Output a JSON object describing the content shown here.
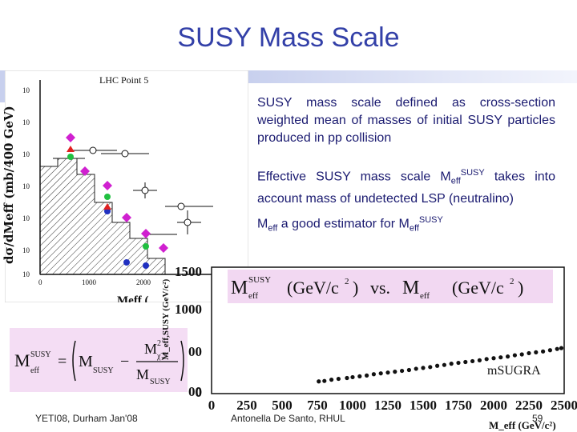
{
  "slide": {
    "title": "SUSY Mass Scale",
    "bullets": [
      {
        "text": "SUSY mass scale defined as cross-section weighted mean of masses of initial SUSY particles produced in pp collision"
      },
      {
        "prefix": "Effective SUSY mass scale  M",
        "sub": "eff",
        "sup": "SUSY",
        "suffix": " takes into account mass of undetected LSP (neutralino)"
      },
      {
        "prefix": "M",
        "sub1": "eff",
        "middle": " a good estimator for  M",
        "sub2": "eff",
        "sup": "SUSY"
      }
    ],
    "footer": {
      "left": "YETI08, Durham Jan'08",
      "center": "Antonella De Santo, RHUL",
      "page": "59"
    }
  },
  "left_plot": {
    "title": "LHC Point 5",
    "ylabel": "dσ/dMeff (mb/400 GeV)",
    "ytick_labels": [
      "10",
      "10",
      "10",
      "10",
      "10",
      "10",
      "10"
    ],
    "xtick_labels": [
      "0",
      "1000",
      "2000"
    ],
    "xlabel_fragment": "Meff (",
    "colors": {
      "magenta": "#d020d0",
      "green": "#20c040",
      "blue": "#2030c0",
      "red": "#e02020"
    }
  },
  "formula": {
    "lhs": "M",
    "lhs_sup": "SUSY",
    "lhs_sub": "eff",
    "equals": "=",
    "m_susy": "M",
    "m_susy_sub": "SUSY",
    "minus": "−",
    "num": "M",
    "num_sup": "2",
    "num_sub": "χ̃₁⁰",
    "den": "M",
    "den_sub": "SUSY"
  },
  "right_plot": {
    "title_parts": {
      "m1": "M",
      "m1_sup": "SUSY",
      "m1_sub": "eff",
      "unit1": "(GeV/c",
      "unit1_sup": "2",
      "unit1_close": ")",
      "vs": "vs.",
      "m2": "M",
      "m2_sub": "eff",
      "unit2": "(GeV/c",
      "unit2_sup": "2",
      "unit2_close": ")"
    },
    "y_tick_labels": [
      "1500",
      "1000",
      "00",
      "00",
      "0"
    ],
    "x_tick_labels": [
      "0",
      "250",
      "500",
      "750",
      "1000",
      "1250",
      "1500",
      "1750",
      "2000",
      "2250",
      "2500"
    ],
    "y_axis_label": "M_eff,SUSY (GeV/c²)",
    "x_axis_label": "M_eff (GeV/c²)",
    "model_label": "mSUGRA"
  },
  "chart_data": {
    "type": "scatter",
    "title": "",
    "xlabel": "Meff (GeV/c²)",
    "ylabel": "Meff SUSY (GeV/c²)",
    "xlim": [
      0,
      2500
    ],
    "ylim": [
      0,
      1500
    ],
    "x_ticks": [
      0,
      250,
      500,
      750,
      1000,
      1250,
      1500,
      1750,
      2000,
      2250,
      2500
    ],
    "annotation": "mSUGRA",
    "points": [
      [
        760,
        145
      ],
      [
        800,
        150
      ],
      [
        850,
        165
      ],
      [
        900,
        175
      ],
      [
        960,
        185
      ],
      [
        1000,
        195
      ],
      [
        1050,
        205
      ],
      [
        1100,
        215
      ],
      [
        1150,
        230
      ],
      [
        1200,
        240
      ],
      [
        1250,
        250
      ],
      [
        1300,
        260
      ],
      [
        1350,
        270
      ],
      [
        1400,
        280
      ],
      [
        1450,
        295
      ],
      [
        1500,
        305
      ],
      [
        1550,
        315
      ],
      [
        1600,
        330
      ],
      [
        1650,
        340
      ],
      [
        1700,
        355
      ],
      [
        1750,
        365
      ],
      [
        1800,
        375
      ],
      [
        1850,
        385
      ],
      [
        1900,
        395
      ],
      [
        1950,
        410
      ],
      [
        2000,
        420
      ],
      [
        2050,
        430
      ],
      [
        2100,
        440
      ],
      [
        2150,
        455
      ],
      [
        2200,
        465
      ],
      [
        2250,
        480
      ],
      [
        2300,
        490
      ],
      [
        2350,
        500
      ],
      [
        2400,
        515
      ],
      [
        2450,
        530
      ],
      [
        2480,
        540
      ]
    ]
  }
}
